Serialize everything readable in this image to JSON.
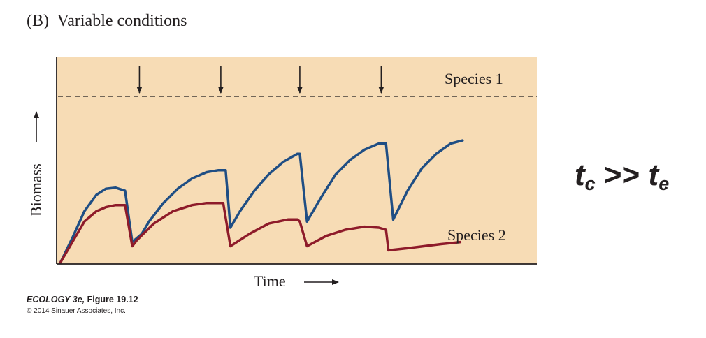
{
  "header": {
    "panel_title": "(B)  Variable conditions"
  },
  "chart_data": {
    "type": "line",
    "title": "(B)  Variable conditions",
    "xlabel": "Time",
    "ylabel": "Biomass",
    "xlim": [
      0,
      10
    ],
    "ylim": [
      0,
      10
    ],
    "grid": false,
    "carrying_capacity": {
      "y": 8.1,
      "label": "Species 1",
      "style": "dashed"
    },
    "disturbance_times": [
      1.7,
      3.4,
      5.05,
      6.75
    ],
    "series": [
      {
        "name": "Species 1",
        "color": "#1f4e84",
        "x": [
          0.05,
          0.3,
          0.55,
          0.8,
          1.0,
          1.2,
          1.4,
          1.55,
          1.75,
          1.9,
          2.2,
          2.5,
          2.8,
          3.1,
          3.35,
          3.5,
          3.6,
          3.8,
          4.1,
          4.4,
          4.7,
          5.0,
          5.05,
          5.2,
          5.5,
          5.8,
          6.1,
          6.4,
          6.7,
          6.85,
          7.0,
          7.3,
          7.6,
          7.9,
          8.2,
          8.45
        ],
        "values": [
          0.0,
          1.2,
          2.5,
          3.3,
          3.6,
          3.65,
          3.5,
          1.0,
          1.4,
          2.0,
          2.9,
          3.6,
          4.1,
          4.4,
          4.5,
          4.5,
          1.7,
          2.5,
          3.5,
          4.3,
          4.9,
          5.3,
          5.3,
          2.0,
          3.2,
          4.3,
          5.0,
          5.5,
          5.8,
          5.8,
          2.1,
          3.5,
          4.6,
          5.3,
          5.8,
          5.95
        ]
      },
      {
        "name": "Species 2",
        "color": "#8e1b2a",
        "x": [
          0.05,
          0.3,
          0.55,
          0.8,
          1.0,
          1.2,
          1.4,
          1.55,
          1.65,
          2.0,
          2.4,
          2.8,
          3.1,
          3.35,
          3.45,
          3.6,
          4.0,
          4.4,
          4.8,
          5.0,
          5.05,
          5.2,
          5.6,
          6.0,
          6.4,
          6.7,
          6.85,
          6.9,
          7.3,
          8.0,
          8.4
        ],
        "values": [
          0.0,
          1.0,
          2.0,
          2.5,
          2.7,
          2.8,
          2.8,
          0.8,
          1.1,
          1.9,
          2.5,
          2.8,
          2.9,
          2.9,
          2.9,
          0.8,
          1.4,
          1.9,
          2.1,
          2.1,
          2.0,
          0.8,
          1.3,
          1.6,
          1.75,
          1.7,
          1.6,
          0.6,
          0.7,
          0.9,
          1.0
        ]
      }
    ],
    "annotations": [
      "Species 1",
      "Species 2"
    ]
  },
  "equation": {
    "left_var": "t",
    "left_sub": "c",
    "operator": ">>",
    "right_var": "t",
    "right_sub": "e"
  },
  "credit": {
    "book": "ECOLOGY 3e,",
    "figure": "Figure 19.12",
    "copyright": "© 2014 Sinauer Associates, Inc."
  },
  "colors": {
    "plot_background": "#f7dcb5",
    "axis": "#231f20",
    "species1": "#1f4e84",
    "species2": "#8e1b2a"
  }
}
